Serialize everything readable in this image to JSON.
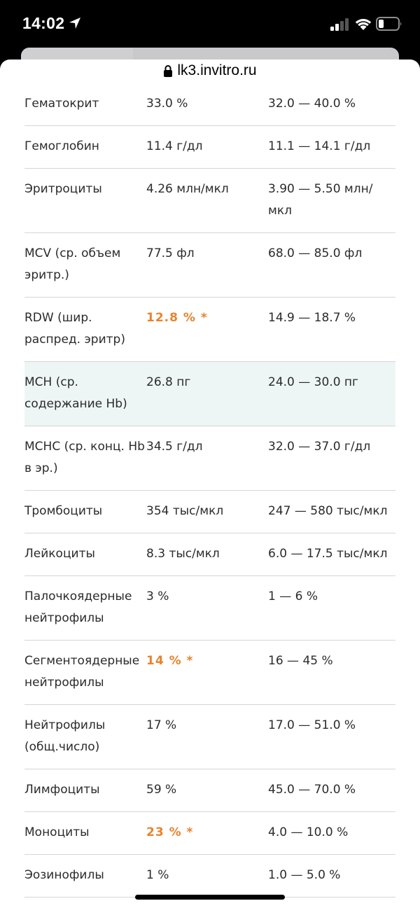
{
  "status_bar": {
    "time": "14:02",
    "location_icon": "location-arrow-icon",
    "signal_icon": "cellular-signal-icon",
    "wifi_icon": "wifi-icon",
    "battery_icon": "battery-low-icon"
  },
  "browser": {
    "url": "lk3.invitro.ru",
    "lock_icon": "lock-icon"
  },
  "colors": {
    "abnormal": "#e8832d",
    "highlight_row": "#eef6f5",
    "divider": "#d6d6d6"
  },
  "results": [
    {
      "name": "Гематокрит",
      "value": "33.0 %",
      "reference": "32.0 — 40.0 %"
    },
    {
      "name": "Гемоглобин",
      "value": "11.4 г/дл",
      "reference": "11.1 — 14.1 г/дл"
    },
    {
      "name": "Эритроциты",
      "value": "4.26 млн/мкл",
      "reference": "3.90 — 5.50 млн/мкл"
    },
    {
      "name": "MCV (ср. объем эритр.)",
      "value": "77.5 фл",
      "reference": "68.0 — 85.0 фл"
    },
    {
      "name": "RDW (шир. распред. эритр)",
      "value": "12.8 % *",
      "reference": "14.9 — 18.7 %"
    },
    {
      "name": "MCH (ср. содержание Hb)",
      "value": "26.8 пг",
      "reference": "24.0 — 30.0 пг"
    },
    {
      "name": "MCHC (ср. конц. Hb в эр.)",
      "value": "34.5 г/дл",
      "reference": "32.0 — 37.0 г/дл"
    },
    {
      "name": "Тромбоциты",
      "value": "354 тыс/мкл",
      "reference": "247 — 580 тыс/мкл"
    },
    {
      "name": "Лейкоциты",
      "value": "8.3 тыс/мкл",
      "reference": "6.0 — 17.5 тыс/мкл"
    },
    {
      "name": "Палочкоядерные нейтрофилы",
      "value": "3 %",
      "reference": "1 — 6 %"
    },
    {
      "name": "Сегментоядерные нейтрофилы",
      "value": "14 % *",
      "reference": "16 — 45 %"
    },
    {
      "name": "Нейтрофилы (общ.число)",
      "value": "17 %",
      "reference": "17.0 — 51.0 %"
    },
    {
      "name": "Лимфоциты",
      "value": "59 %",
      "reference": "45.0 — 70.0 %"
    },
    {
      "name": "Моноциты",
      "value": "23 % *",
      "reference": "4.0 — 10.0 %"
    },
    {
      "name": "Эозинофилы",
      "value": "1 %",
      "reference": "1.0 — 5.0 %"
    }
  ]
}
